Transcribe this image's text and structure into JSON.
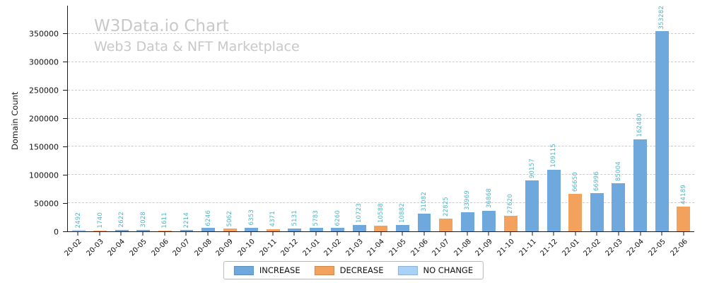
{
  "chart_data": {
    "type": "bar",
    "title": "W3Data.io Chart",
    "subtitle": "Web3 Data & NFT Marketplace",
    "xlabel": "",
    "ylabel": "Domain Count",
    "ylim": [
      0,
      400000
    ],
    "yticks": [
      0,
      50000,
      100000,
      150000,
      200000,
      250000,
      300000,
      350000
    ],
    "grid": "horizontal-dashed",
    "legend_position": "bottom-center",
    "value_labels_rotation": 90,
    "categories": [
      "20-02",
      "20-03",
      "20-04",
      "20-05",
      "20-06",
      "20-07",
      "20-08",
      "20-09",
      "20-10",
      "20-11",
      "20-12",
      "21-01",
      "21-02",
      "21-03",
      "21-04",
      "21-05",
      "21-06",
      "21-07",
      "21-08",
      "21-09",
      "21-10",
      "21-11",
      "21-12",
      "22-01",
      "22-02",
      "22-03",
      "22-04",
      "22-05",
      "22-06"
    ],
    "values": [
      2492,
      1740,
      2622,
      3028,
      1611,
      2214,
      6246,
      5062,
      6353,
      4371,
      5131,
      5783,
      6260,
      10723,
      10588,
      10882,
      31082,
      22825,
      33969,
      36868,
      27620,
      90157,
      109115,
      66650,
      66996,
      85004,
      162480,
      353282,
      44189
    ],
    "bar_types": [
      "no_change",
      "decrease",
      "increase",
      "increase",
      "decrease",
      "increase",
      "increase",
      "decrease",
      "increase",
      "decrease",
      "increase",
      "increase",
      "increase",
      "increase",
      "decrease",
      "increase",
      "increase",
      "decrease",
      "increase",
      "increase",
      "decrease",
      "increase",
      "increase",
      "decrease",
      "increase",
      "increase",
      "increase",
      "increase",
      "decrease"
    ],
    "colors": {
      "increase": "#6fa8dc",
      "decrease": "#f2a25c",
      "no_change": "#a8d2f7",
      "value_label": "#4fb6c4",
      "title": "#c8c8c8",
      "gridline": "#cccccc"
    },
    "legend": [
      {
        "label": "INCREASE",
        "type": "increase"
      },
      {
        "label": "DECREASE",
        "type": "decrease"
      },
      {
        "label": "NO CHANGE",
        "type": "no_change"
      }
    ]
  }
}
